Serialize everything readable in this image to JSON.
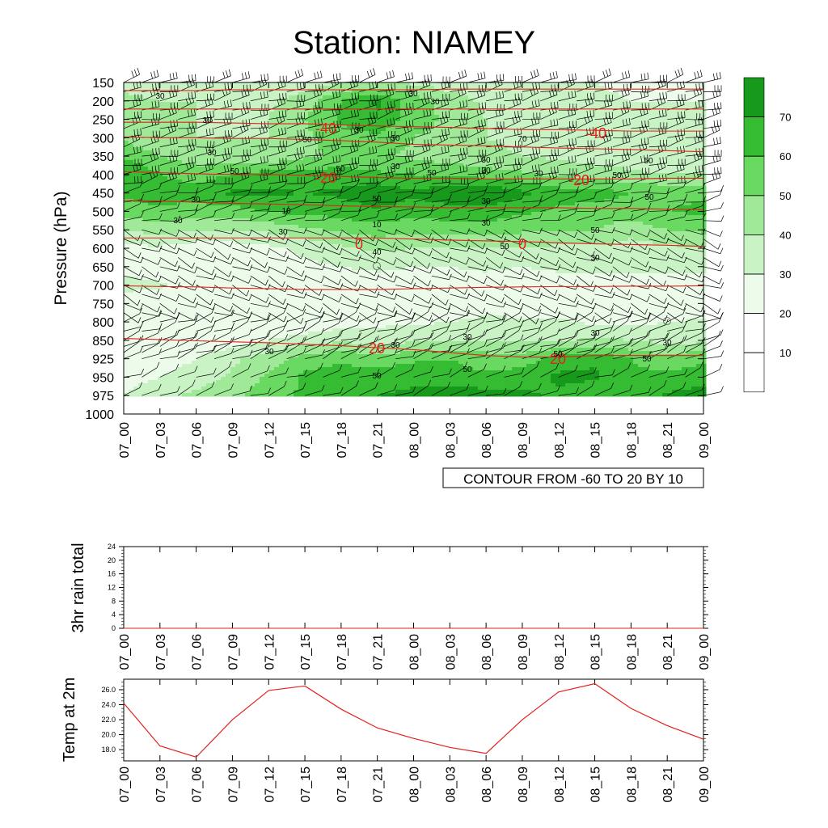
{
  "title": "Station: NIAMEY",
  "colors": {
    "shades": [
      "#ffffff",
      "#edfbeb",
      "#c9f3c5",
      "#9fe998",
      "#6ad962",
      "#35bc32",
      "#179a1c"
    ],
    "temperature_contour": "#e2221e",
    "wind_barbs": "#000000",
    "temp_line": "#e2221e"
  },
  "chart_data": [
    {
      "id": "cross_section",
      "type": "heatmap",
      "title": "Station: NIAMEY",
      "ylabel": "Pressure (hPa)",
      "xlabel": "",
      "x": [
        "07_00",
        "07_03",
        "07_06",
        "07_09",
        "07_12",
        "07_15",
        "07_18",
        "07_21",
        "08_00",
        "08_03",
        "08_06",
        "08_09",
        "08_12",
        "08_15",
        "08_18",
        "08_21",
        "09_00"
      ],
      "y": [
        150,
        200,
        250,
        300,
        350,
        400,
        450,
        500,
        550,
        600,
        650,
        700,
        750,
        800,
        850,
        925,
        950,
        975,
        1000
      ],
      "yaxis": "inverted pressure",
      "shaded_field": "relative humidity",
      "shade_levels": [
        10,
        20,
        30,
        40,
        50,
        60,
        70
      ],
      "colorbar_labels": [
        "70",
        "60",
        "50",
        "40",
        "30",
        "20",
        "10"
      ],
      "humidity_grid_rows": {
        "150": [
          28,
          25,
          25,
          22,
          22,
          25,
          30,
          30,
          28,
          25,
          22,
          22,
          20,
          20,
          18,
          18,
          18
        ],
        "200": [
          32,
          30,
          30,
          28,
          28,
          35,
          50,
          62,
          45,
          35,
          28,
          25,
          22,
          22,
          20,
          20,
          20
        ],
        "250": [
          35,
          30,
          30,
          28,
          30,
          40,
          52,
          58,
          45,
          38,
          30,
          28,
          25,
          22,
          20,
          20,
          20
        ],
        "300": [
          38,
          32,
          30,
          30,
          30,
          38,
          45,
          48,
          40,
          35,
          30,
          28,
          25,
          22,
          22,
          20,
          20
        ],
        "350": [
          48,
          40,
          35,
          32,
          32,
          38,
          42,
          42,
          38,
          35,
          32,
          30,
          28,
          25,
          25,
          22,
          22
        ],
        "400": [
          62,
          50,
          45,
          50,
          55,
          55,
          55,
          52,
          50,
          48,
          45,
          42,
          38,
          35,
          32,
          30,
          30
        ],
        "450": [
          52,
          55,
          55,
          62,
          62,
          60,
          62,
          68,
          62,
          68,
          70,
          62,
          55,
          55,
          50,
          48,
          48
        ],
        "500": [
          45,
          48,
          45,
          45,
          52,
          52,
          55,
          58,
          55,
          55,
          56,
          52,
          48,
          45,
          45,
          50,
          52
        ],
        "550": [
          30,
          35,
          30,
          30,
          32,
          38,
          42,
          45,
          42,
          45,
          45,
          42,
          40,
          40,
          35,
          40,
          42
        ],
        "600": [
          18,
          18,
          15,
          15,
          18,
          22,
          28,
          32,
          30,
          30,
          30,
          30,
          28,
          28,
          25,
          28,
          30
        ],
        "650": [
          15,
          12,
          12,
          12,
          15,
          18,
          20,
          22,
          20,
          20,
          22,
          20,
          22,
          22,
          22,
          22,
          22
        ],
        "700": [
          25,
          22,
          12,
          10,
          10,
          12,
          15,
          15,
          15,
          15,
          15,
          15,
          15,
          15,
          15,
          15,
          15
        ],
        "750": [
          12,
          10,
          10,
          10,
          10,
          10,
          10,
          10,
          10,
          10,
          10,
          12,
          12,
          10,
          10,
          10,
          10
        ],
        "800": [
          10,
          10,
          10,
          10,
          10,
          12,
          15,
          18,
          18,
          20,
          25,
          22,
          22,
          18,
          18,
          20,
          22
        ],
        "850": [
          10,
          10,
          12,
          15,
          20,
          25,
          28,
          25,
          28,
          30,
          30,
          28,
          28,
          32,
          30,
          25,
          28
        ],
        "925": [
          12,
          15,
          20,
          28,
          35,
          45,
          48,
          45,
          48,
          50,
          45,
          45,
          55,
          58,
          50,
          45,
          48
        ],
        "950": [
          15,
          20,
          25,
          32,
          42,
          52,
          55,
          55,
          58,
          55,
          52,
          55,
          62,
          62,
          52,
          52,
          55
        ],
        "975": [
          20,
          28,
          32,
          38,
          45,
          52,
          55,
          60,
          62,
          65,
          65,
          62,
          58,
          52,
          52,
          62,
          65
        ]
      },
      "shade_labels_upper": [
        "30",
        "30",
        "30",
        "30",
        "30",
        "40",
        "50",
        "50",
        "50",
        "30",
        "30",
        "10",
        "30",
        "10",
        "30",
        "50",
        "50",
        "50",
        "50",
        "50",
        "70",
        "50",
        "50",
        "50",
        "30",
        "30",
        "30",
        "30",
        "30",
        "50"
      ],
      "shade_labels_lower": [
        "30",
        "30",
        "30",
        "30",
        "30",
        "50",
        "50",
        "50",
        "50",
        "30"
      ],
      "temperature_contours": {
        "description": "CONTOUR FROM -60 TO 20 BY 10",
        "labels": [
          "-40",
          "-40",
          "-20",
          "-20",
          "0",
          "0",
          "20",
          "20"
        ],
        "levels": [
          {
            "value": -60,
            "pressure": [
              172,
              172,
              172,
              170,
              170,
              170,
              170,
              170,
              170,
              168,
              168,
              168,
              168,
              168,
              168,
              168,
              168
            ]
          },
          {
            "value": -50,
            "pressure": [
              222,
              222,
              222,
              222,
              222,
              222,
              222,
              222,
              222,
              222,
              222,
              222,
              222,
              222,
              222,
              222,
              222
            ]
          },
          {
            "value": -40,
            "pressure": [
              258,
              258,
              258,
              260,
              262,
              262,
              265,
              268,
              270,
              272,
              275,
              278,
              278,
              280,
              282,
              282,
              282
            ]
          },
          {
            "value": -30,
            "pressure": [
              298,
              300,
              300,
              302,
              302,
              305,
              308,
              312,
              318,
              320,
              322,
              325,
              328,
              330,
              332,
              335,
              338
            ]
          },
          {
            "value": -20,
            "pressure": [
              392,
              395,
              398,
              400,
              400,
              402,
              405,
              408,
              410,
              410,
              412,
              412,
              412,
              412,
              412,
              410,
              410
            ]
          },
          {
            "value": -10,
            "pressure": [
              470,
              472,
              475,
              478,
              480,
              482,
              485,
              487,
              488,
              490,
              490,
              490,
              490,
              492,
              492,
              494,
              495
            ]
          },
          {
            "value": 0,
            "pressure": [
              572,
              572,
              572,
              572,
              572,
              572,
              572,
              572,
              575,
              578,
              580,
              582,
              585,
              588,
              590,
              592,
              595
            ]
          },
          {
            "value": 10,
            "pressure": [
              702,
              704,
              705,
              708,
              710,
              712,
              712,
              712,
              710,
              708,
              706,
              705,
              704,
              704,
              703,
              703,
              702
            ]
          },
          {
            "value": 20,
            "pressure": [
              845,
              848,
              852,
              856,
              860,
              866,
              872,
              880,
              888,
              900,
              912,
              918,
              918,
              912,
              912,
              912,
              912
            ]
          }
        ]
      },
      "wind_barbs": true,
      "annotation": "CONTOUR FROM -60 TO 20 BY 10"
    },
    {
      "id": "rain",
      "type": "line",
      "ylabel": "3hr rain total",
      "xlabel": "",
      "x": [
        "07_00",
        "07_03",
        "07_06",
        "07_09",
        "07_12",
        "07_15",
        "07_18",
        "07_21",
        "08_00",
        "08_03",
        "08_06",
        "08_09",
        "08_12",
        "08_15",
        "08_18",
        "08_21",
        "09_00"
      ],
      "ylim": [
        0,
        24
      ],
      "yticks": [
        "0",
        "4",
        "8",
        "12",
        "16",
        "20",
        "24"
      ],
      "values": [
        0,
        0,
        0,
        0,
        0,
        0,
        0,
        0,
        0,
        0,
        0,
        0,
        0,
        0,
        0,
        0,
        0
      ]
    },
    {
      "id": "temp2m",
      "type": "line",
      "ylabel": "Temp at 2m",
      "xlabel": "",
      "x": [
        "07_00",
        "07_03",
        "07_06",
        "07_09",
        "07_12",
        "07_15",
        "07_18",
        "07_21",
        "08_00",
        "08_03",
        "08_06",
        "08_09",
        "08_12",
        "08_15",
        "08_18",
        "08_21",
        "09_00"
      ],
      "ylim": [
        16.5,
        27.4
      ],
      "yticks": [
        "18.0",
        "20.0",
        "22.0",
        "24.0",
        "26.0"
      ],
      "values": [
        24.2,
        18.5,
        17.0,
        22.0,
        25.9,
        26.5,
        23.4,
        20.9,
        19.5,
        18.3,
        17.5,
        22.0,
        25.7,
        26.8,
        23.5,
        21.2,
        19.4
      ]
    }
  ]
}
